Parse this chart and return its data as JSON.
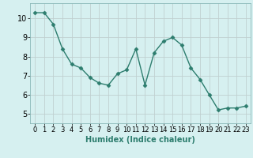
{
  "x": [
    0,
    1,
    2,
    3,
    4,
    5,
    6,
    7,
    8,
    9,
    10,
    11,
    12,
    13,
    14,
    15,
    16,
    17,
    18,
    19,
    20,
    21,
    22,
    23
  ],
  "y": [
    10.3,
    10.3,
    9.7,
    8.4,
    7.6,
    7.4,
    6.9,
    6.6,
    6.5,
    7.1,
    7.3,
    8.4,
    6.5,
    8.2,
    8.8,
    9.0,
    8.6,
    7.4,
    6.8,
    6.0,
    5.2,
    5.3,
    5.3,
    5.4
  ],
  "line_color": "#2d7d6e",
  "marker": "D",
  "marker_size": 2.5,
  "bg_color": "#d6f0f0",
  "grid_color": "#c0d0d0",
  "xlabel": "Humidex (Indice chaleur)",
  "xlabel_fontsize": 7,
  "ylim": [
    4.5,
    10.8
  ],
  "xlim": [
    -0.5,
    23.5
  ],
  "yticks": [
    5,
    6,
    7,
    8,
    9,
    10
  ],
  "xticks": [
    0,
    1,
    2,
    3,
    4,
    5,
    6,
    7,
    8,
    9,
    10,
    11,
    12,
    13,
    14,
    15,
    16,
    17,
    18,
    19,
    20,
    21,
    22,
    23
  ],
  "tick_fontsize": 6,
  "linewidth": 1.0
}
